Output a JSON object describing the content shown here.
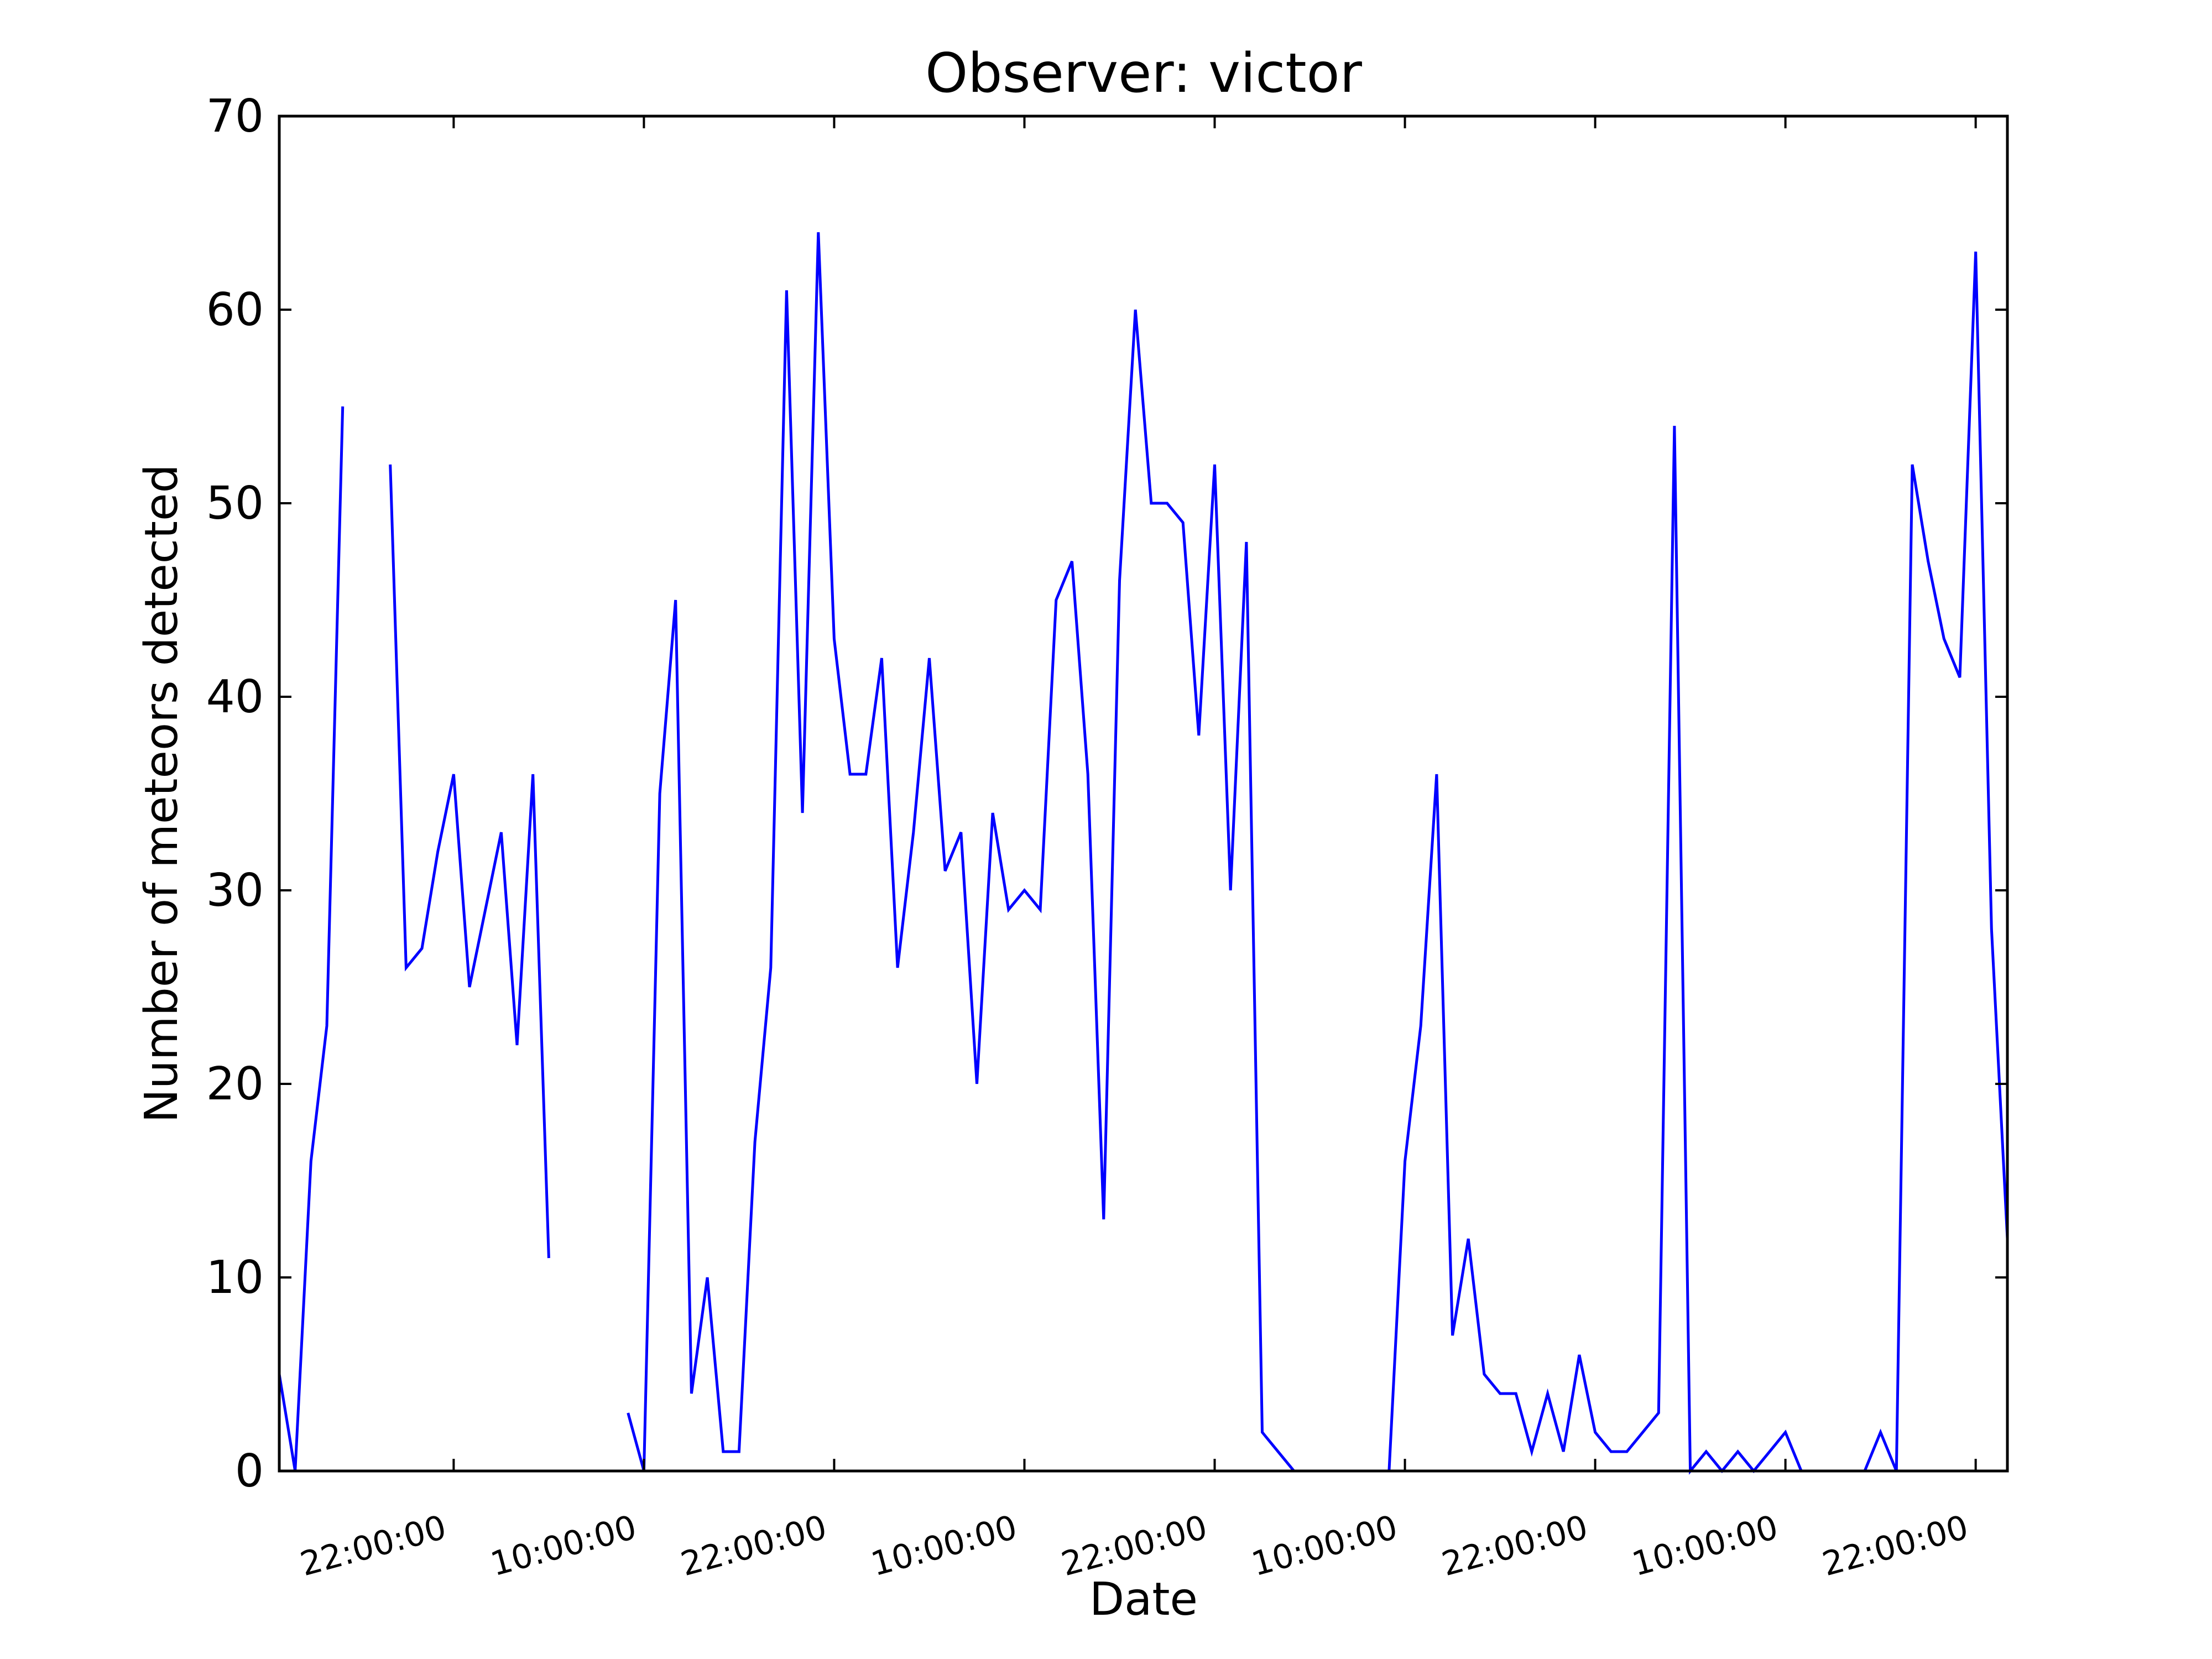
{
  "chart_data": {
    "type": "line",
    "title": "Observer: victor",
    "xlabel": "Date",
    "ylabel": "Number of meteors detected",
    "ylim": [
      0,
      70
    ],
    "yticks": [
      0,
      10,
      20,
      30,
      40,
      50,
      60,
      70
    ],
    "xlim_hours": [
      13,
      122
    ],
    "xticks": [
      {
        "label": "22:00:00",
        "hour": 24
      },
      {
        "label": "10:00:00",
        "hour": 36
      },
      {
        "label": "22:00:00",
        "hour": 48
      },
      {
        "label": "10:00:00",
        "hour": 60
      },
      {
        "label": "22:00:00",
        "hour": 72
      },
      {
        "label": "10:00:00",
        "hour": 84
      },
      {
        "label": "22:00:00",
        "hour": 96
      },
      {
        "label": "10:00:00",
        "hour": 108
      },
      {
        "label": "22:00:00",
        "hour": 120
      }
    ],
    "grid": false,
    "legend": "none",
    "color": "#0000ff",
    "series": [
      {
        "segments": [
          [
            [
              13,
              5
            ],
            [
              14,
              0
            ],
            [
              15,
              16
            ],
            [
              16,
              23
            ],
            [
              17,
              55
            ]
          ],
          [
            [
              20,
              52
            ],
            [
              21,
              26
            ],
            [
              22,
              27
            ],
            [
              23,
              32
            ],
            [
              24,
              36
            ],
            [
              25,
              25
            ],
            [
              26,
              29
            ],
            [
              27,
              33
            ],
            [
              28,
              22
            ],
            [
              29,
              36
            ],
            [
              30,
              11
            ]
          ],
          [
            [
              35,
              3
            ],
            [
              36,
              0
            ],
            [
              37,
              35
            ],
            [
              38,
              45
            ],
            [
              39,
              4
            ],
            [
              40,
              10
            ],
            [
              41,
              1
            ],
            [
              42,
              1
            ],
            [
              43,
              17
            ],
            [
              44,
              26
            ],
            [
              45,
              61
            ],
            [
              46,
              34
            ],
            [
              47,
              64
            ],
            [
              48,
              43
            ],
            [
              49,
              36
            ],
            [
              50,
              36
            ],
            [
              51,
              42
            ],
            [
              52,
              26
            ],
            [
              53,
              33
            ],
            [
              54,
              42
            ],
            [
              55,
              31
            ],
            [
              56,
              33
            ],
            [
              57,
              20
            ],
            [
              58,
              34
            ],
            [
              59,
              29
            ],
            [
              60,
              30
            ],
            [
              61,
              29
            ],
            [
              62,
              45
            ],
            [
              63,
              47
            ],
            [
              64,
              36
            ],
            [
              65,
              13
            ],
            [
              66,
              46
            ],
            [
              67,
              60
            ],
            [
              68,
              50
            ],
            [
              69,
              50
            ],
            [
              70,
              49
            ],
            [
              71,
              38
            ],
            [
              72,
              52
            ],
            [
              73,
              30
            ],
            [
              74,
              48
            ],
            [
              75,
              2
            ],
            [
              76,
              1
            ],
            [
              77,
              0
            ],
            [
              78,
              0
            ],
            [
              79,
              0
            ],
            [
              80,
              0
            ],
            [
              81,
              0
            ],
            [
              82,
              0
            ],
            [
              83,
              0
            ],
            [
              84,
              16
            ],
            [
              85,
              23
            ],
            [
              86,
              36
            ],
            [
              87,
              7
            ],
            [
              88,
              12
            ],
            [
              89,
              5
            ],
            [
              90,
              4
            ],
            [
              91,
              4
            ],
            [
              92,
              1
            ],
            [
              93,
              4
            ],
            [
              94,
              1
            ],
            [
              95,
              6
            ],
            [
              96,
              2
            ],
            [
              97,
              1
            ],
            [
              98,
              1
            ],
            [
              99,
              2
            ],
            [
              100,
              3
            ],
            [
              101,
              54
            ],
            [
              102,
              0
            ],
            [
              103,
              1
            ],
            [
              104,
              0
            ],
            [
              105,
              1
            ],
            [
              106,
              0
            ],
            [
              107,
              1
            ],
            [
              108,
              2
            ],
            [
              109,
              0
            ],
            [
              110,
              0
            ],
            [
              111,
              0
            ],
            [
              112,
              0
            ],
            [
              113,
              0
            ],
            [
              114,
              2
            ],
            [
              115,
              0
            ],
            [
              116,
              52
            ],
            [
              117,
              47
            ],
            [
              118,
              43
            ],
            [
              119,
              41
            ],
            [
              120,
              63
            ],
            [
              121,
              28
            ],
            [
              122,
              12
            ]
          ]
        ]
      }
    ]
  }
}
